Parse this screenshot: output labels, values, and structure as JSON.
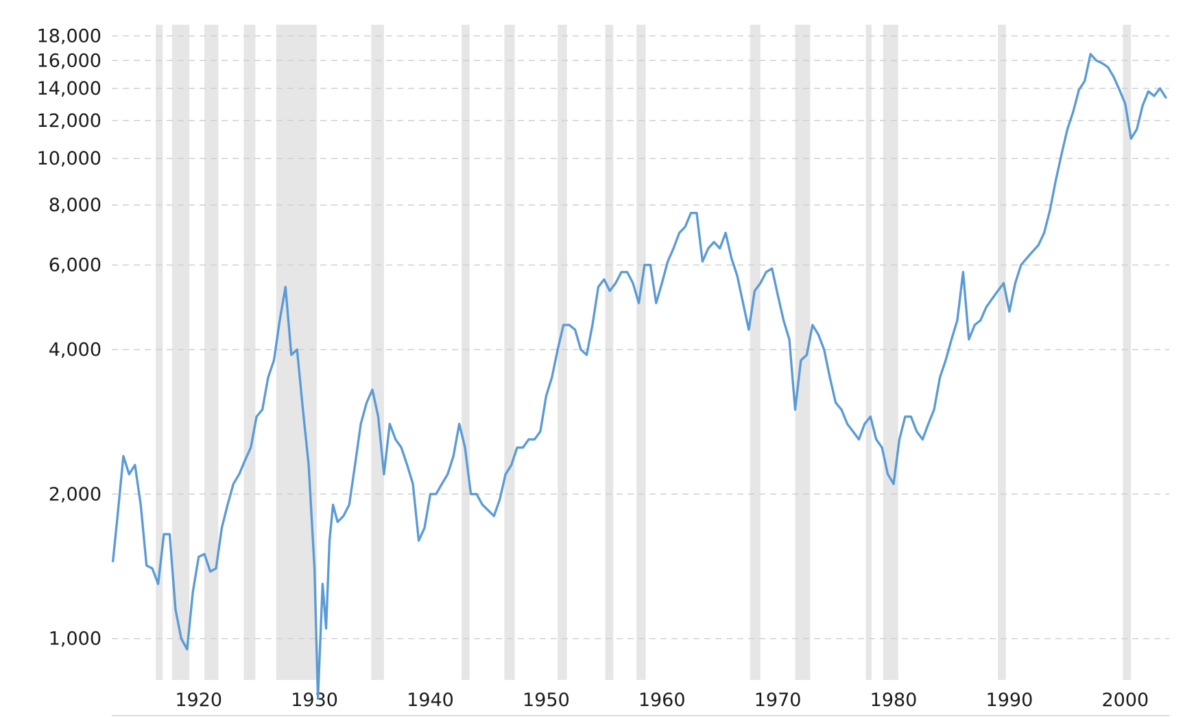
{
  "chart_data": {
    "type": "line",
    "title": "",
    "xlabel": "",
    "ylabel": "",
    "y_scale": "log",
    "ylim": [
      820,
      19000
    ],
    "xlim": [
      1912.5,
      2003.8
    ],
    "grid": "horizontal dashed",
    "y_ticks": [
      {
        "value": 1000,
        "label": "1,000"
      },
      {
        "value": 2000,
        "label": "2,000"
      },
      {
        "value": 4000,
        "label": "4,000"
      },
      {
        "value": 6000,
        "label": "6,000"
      },
      {
        "value": 8000,
        "label": "8,000"
      },
      {
        "value": 10000,
        "label": "10,000"
      },
      {
        "value": 12000,
        "label": "12,000"
      },
      {
        "value": 14000,
        "label": "14,000"
      },
      {
        "value": 16000,
        "label": "16,000"
      },
      {
        "value": 18000,
        "label": "18,000"
      }
    ],
    "x_ticks": [
      {
        "value": 1920,
        "label": "1920"
      },
      {
        "value": 1930,
        "label": "1930"
      },
      {
        "value": 1940,
        "label": "1940"
      },
      {
        "value": 1950,
        "label": "1950"
      },
      {
        "value": 1960,
        "label": "1960"
      },
      {
        "value": 1970,
        "label": "1970"
      },
      {
        "value": 1980,
        "label": "1980"
      },
      {
        "value": 1990,
        "label": "1990"
      },
      {
        "value": 2000,
        "label": "2000"
      }
    ],
    "recessions": [
      [
        1916.3,
        1916.9
      ],
      [
        1917.7,
        1919.2
      ],
      [
        1920.5,
        1921.7
      ],
      [
        1923.9,
        1924.9
      ],
      [
        1926.7,
        1930.2
      ],
      [
        1934.9,
        1936.0
      ],
      [
        1942.7,
        1943.4
      ],
      [
        1946.4,
        1947.3
      ],
      [
        1951.0,
        1951.8
      ],
      [
        1955.1,
        1955.8
      ],
      [
        1957.8,
        1958.6
      ],
      [
        1967.6,
        1968.5
      ],
      [
        1971.5,
        1972.8
      ],
      [
        1977.6,
        1978.1
      ],
      [
        1979.1,
        1980.4
      ],
      [
        1989.0,
        1989.7
      ],
      [
        1999.8,
        2000.5
      ]
    ],
    "colors": {
      "line": "#5b9bd5",
      "recession": "#e6e6e6",
      "grid": "#cfcfcf"
    },
    "series": [
      {
        "color": "#5b9bd5",
        "x": [
          1912.6,
          1913.0,
          1913.5,
          1914.0,
          1914.5,
          1915.0,
          1915.5,
          1916.0,
          1916.5,
          1917.0,
          1917.5,
          1918.0,
          1918.5,
          1919.0,
          1919.5,
          1920.0,
          1920.5,
          1921.0,
          1921.5,
          1922.0,
          1922.5,
          1923.0,
          1923.5,
          1924.0,
          1924.5,
          1925.0,
          1925.5,
          1926.0,
          1926.5,
          1927.0,
          1927.5,
          1928.0,
          1928.5,
          1929.0,
          1929.5,
          1930.0,
          1930.3,
          1930.7,
          1931.0,
          1931.3,
          1931.6,
          1932.0,
          1932.5,
          1933.0,
          1933.5,
          1934.0,
          1934.5,
          1935.0,
          1935.5,
          1936.0,
          1936.5,
          1937.0,
          1937.5,
          1938.0,
          1938.5,
          1939.0,
          1939.5,
          1940.0,
          1940.5,
          1941.0,
          1941.5,
          1942.0,
          1942.5,
          1943.0,
          1943.5,
          1944.0,
          1944.5,
          1945.0,
          1945.5,
          1946.0,
          1946.5,
          1947.0,
          1947.5,
          1948.0,
          1948.5,
          1949.0,
          1949.5,
          1950.0,
          1950.5,
          1951.0,
          1951.5,
          1952.0,
          1952.5,
          1953.0,
          1953.5,
          1954.0,
          1954.5,
          1955.0,
          1955.5,
          1956.0,
          1956.5,
          1957.0,
          1957.5,
          1958.0,
          1958.5,
          1959.0,
          1959.5,
          1960.0,
          1960.5,
          1961.0,
          1961.5,
          1962.0,
          1962.5,
          1963.0,
          1963.5,
          1964.0,
          1964.5,
          1965.0,
          1965.5,
          1966.0,
          1966.5,
          1967.0,
          1967.5,
          1968.0,
          1968.5,
          1969.0,
          1969.5,
          1970.0,
          1970.5,
          1971.0,
          1971.5,
          1972.0,
          1972.5,
          1973.0,
          1973.5,
          1974.0,
          1974.5,
          1975.0,
          1975.5,
          1976.0,
          1976.5,
          1977.0,
          1977.5,
          1978.0,
          1978.5,
          1979.0,
          1979.5,
          1980.0,
          1980.5,
          1981.0,
          1981.5,
          1982.0,
          1982.5,
          1983.0,
          1983.5,
          1984.0,
          1984.5,
          1985.0,
          1985.5,
          1986.0,
          1986.5,
          1987.0,
          1987.5,
          1988.0,
          1988.5,
          1989.0,
          1989.5,
          1990.0,
          1990.5,
          1991.0,
          1991.5,
          1992.0,
          1992.5,
          1993.0,
          1993.5,
          1994.0,
          1994.5,
          1995.0,
          1995.5,
          1996.0,
          1996.5,
          1997.0,
          1997.5,
          1998.0,
          1998.5,
          1999.0,
          1999.5,
          2000.0,
          2000.5,
          2001.0,
          2001.5,
          2002.0,
          2002.5,
          2003.0,
          2003.5
        ],
        "y": [
          1450,
          1800,
          2400,
          2200,
          2300,
          1900,
          1420,
          1400,
          1300,
          1650,
          1650,
          1150,
          1000,
          950,
          1250,
          1480,
          1500,
          1380,
          1400,
          1700,
          1900,
          2100,
          2200,
          2350,
          2500,
          2900,
          3000,
          3500,
          3800,
          4600,
          5400,
          3900,
          4000,
          3000,
          2300,
          1400,
          750,
          1300,
          1050,
          1600,
          1900,
          1750,
          1800,
          1900,
          2300,
          2800,
          3100,
          3300,
          2900,
          2200,
          2800,
          2600,
          2500,
          2300,
          2100,
          1600,
          1700,
          2000,
          2000,
          2100,
          2200,
          2400,
          2800,
          2500,
          2000,
          2000,
          1900,
          1850,
          1800,
          1950,
          2200,
          2300,
          2500,
          2500,
          2600,
          2600,
          2700,
          3200,
          3500,
          4000,
          4500,
          4500,
          4400,
          4000,
          3900,
          4500,
          5400,
          5600,
          5300,
          5500,
          5800,
          5800,
          5500,
          5000,
          6000,
          6000,
          5000,
          5500,
          6100,
          6500,
          7000,
          7200,
          7700,
          7700,
          6100,
          6500,
          6700,
          6500,
          7000,
          6200,
          5700,
          5000,
          4400,
          5300,
          5500,
          5800,
          5900,
          5200,
          4600,
          4200,
          3000,
          3800,
          3900,
          4500,
          4300,
          4000,
          3500,
          3100,
          3000,
          2800,
          2700,
          2600,
          2800,
          2900,
          2600,
          2500,
          2200,
          2100,
          2600,
          2900,
          2900,
          2700,
          2600,
          2800,
          3000,
          3500,
          3800,
          4200,
          4600,
          5800,
          4200,
          4500,
          4600,
          4900,
          5100,
          5300,
          5500,
          4800,
          5500,
          6000,
          6200,
          6400,
          6600,
          7000,
          7800,
          9000,
          10200,
          11500,
          12500,
          13900,
          14500,
          16500,
          16000,
          15800,
          15500,
          14800,
          13900,
          13000,
          11000,
          11500,
          12900,
          13800,
          13500,
          14000,
          13400
        ]
      }
    ]
  }
}
